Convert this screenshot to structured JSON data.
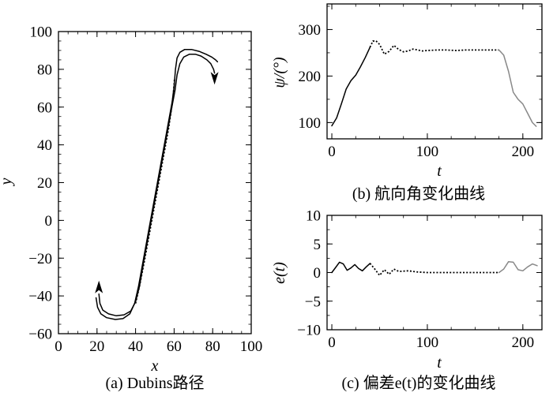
{
  "chart_data": [
    {
      "type": "line",
      "caption": "(a) Dubins路径",
      "xlabel": "x",
      "ylabel": "y",
      "xlim": [
        0,
        100
      ],
      "ylim": [
        -60,
        100
      ],
      "xticks": [
        "0",
        "20",
        "40",
        "60",
        "80",
        "100"
      ],
      "yticks": [
        "−60",
        "−40",
        "−20",
        "0",
        "20",
        "40",
        "60",
        "80",
        "100"
      ],
      "series": [
        {
          "style": "solid",
          "color": "#000000",
          "x": [
            21,
            21.5,
            23,
            26,
            30,
            34,
            37.5,
            40,
            42,
            44,
            46.5,
            49,
            51.5,
            54,
            56.5,
            59,
            60.5,
            61.5,
            63,
            65,
            68,
            71,
            74,
            77,
            79,
            80.5,
            81
          ],
          "y": [
            -39,
            -44,
            -47.5,
            -49.5,
            -50.5,
            -50,
            -48,
            -43,
            -35,
            -23,
            -9,
            5,
            19,
            33,
            47,
            61,
            69,
            77,
            83,
            86.5,
            88,
            88,
            87,
            85,
            83,
            80,
            78
          ]
        },
        {
          "style": "dotted",
          "color": "#000000",
          "x": [
            40,
            42,
            44.5,
            47,
            49.5,
            52,
            54.5,
            57,
            58.5,
            59.5,
            60,
            60.2
          ],
          "y": [
            -44,
            -35,
            -22,
            -8,
            6,
            20,
            34,
            48,
            58,
            66,
            72,
            75
          ]
        },
        {
          "style": "solid",
          "color": "#000000",
          "x": [
            19.5,
            20.3,
            22,
            25,
            29.5,
            33.5,
            37,
            39.5,
            41.5,
            44,
            46.5,
            49,
            51.5,
            54,
            56.5,
            59,
            60,
            60.7,
            61.5,
            63,
            65.5,
            69,
            73,
            76.5,
            79.5,
            81.5,
            82.5
          ],
          "y": [
            -41,
            -46,
            -49.5,
            -51.5,
            -52.5,
            -52,
            -49.5,
            -44,
            -35,
            -21,
            -7,
            7,
            21,
            35,
            49,
            63,
            71,
            80,
            86,
            89,
            90.5,
            90.5,
            89.5,
            88,
            86.5,
            85,
            84
          ]
        }
      ],
      "arrows": [
        {
          "at": [
            21,
            -39
          ],
          "direction": "up"
        },
        {
          "at": [
            81,
            79
          ],
          "direction": "down"
        }
      ]
    },
    {
      "type": "line",
      "caption": "(b) 航向角变化曲线",
      "xlabel": "t",
      "ylabel": "ψ/(°)",
      "xlim": [
        -5,
        220
      ],
      "ylim": [
        65,
        355
      ],
      "xticks": [
        "0",
        "100",
        "200"
      ],
      "yticks": [
        "100",
        "200",
        "300"
      ],
      "series": [
        {
          "style": "solid",
          "color": "#000000",
          "x": [
            0,
            5,
            10,
            15,
            20,
            25,
            30,
            35,
            40
          ],
          "y": [
            93,
            110,
            140,
            172,
            190,
            202,
            220,
            240,
            262
          ]
        },
        {
          "style": "dotted",
          "color": "#000000",
          "x": [
            40,
            43,
            46,
            50,
            55,
            60,
            65,
            70,
            75,
            80,
            85,
            90,
            95,
            100,
            110,
            120,
            130,
            140,
            150,
            160,
            170,
            175
          ],
          "y": [
            262,
            275,
            276,
            268,
            247,
            253,
            266,
            257,
            252,
            254,
            258,
            256,
            254,
            255,
            256,
            256,
            255,
            256,
            256,
            256,
            256,
            256
          ]
        },
        {
          "style": "solid",
          "color": "#888888",
          "x": [
            175,
            180,
            185,
            190,
            195,
            200,
            205,
            210,
            214
          ],
          "y": [
            256,
            245,
            210,
            165,
            150,
            140,
            120,
            100,
            92
          ]
        }
      ]
    },
    {
      "type": "line",
      "caption": "(c) 偏差e(t)的变化曲线",
      "xlabel": "t",
      "ylabel": "e(t)",
      "xlim": [
        -5,
        220
      ],
      "ylim": [
        -10,
        10
      ],
      "xticks": [
        "0",
        "100",
        "200"
      ],
      "yticks": [
        "−10",
        "−5",
        "0",
        "5",
        "10"
      ],
      "series": [
        {
          "style": "solid",
          "color": "#000000",
          "x": [
            0,
            4,
            8,
            12,
            16,
            20,
            24,
            28,
            32,
            36,
            40
          ],
          "y": [
            0,
            0.9,
            1.8,
            1.5,
            0.4,
            0.8,
            1.4,
            0.7,
            0.3,
            1.0,
            1.6
          ]
        },
        {
          "style": "dotted",
          "color": "#000000",
          "x": [
            40,
            45,
            50,
            55,
            60,
            65,
            70,
            80,
            90,
            100,
            120,
            140,
            160,
            175
          ],
          "y": [
            1.6,
            0.6,
            -0.5,
            0.5,
            -0.3,
            0.6,
            0.2,
            0.3,
            0.1,
            0.0,
            0.0,
            0.0,
            0.0,
            0.0
          ]
        },
        {
          "style": "solid",
          "color": "#888888",
          "x": [
            175,
            180,
            185,
            190,
            195,
            200,
            205,
            210,
            215
          ],
          "y": [
            0.0,
            0.6,
            1.9,
            1.8,
            0.5,
            0.3,
            1.0,
            1.5,
            1.2
          ]
        }
      ]
    }
  ]
}
